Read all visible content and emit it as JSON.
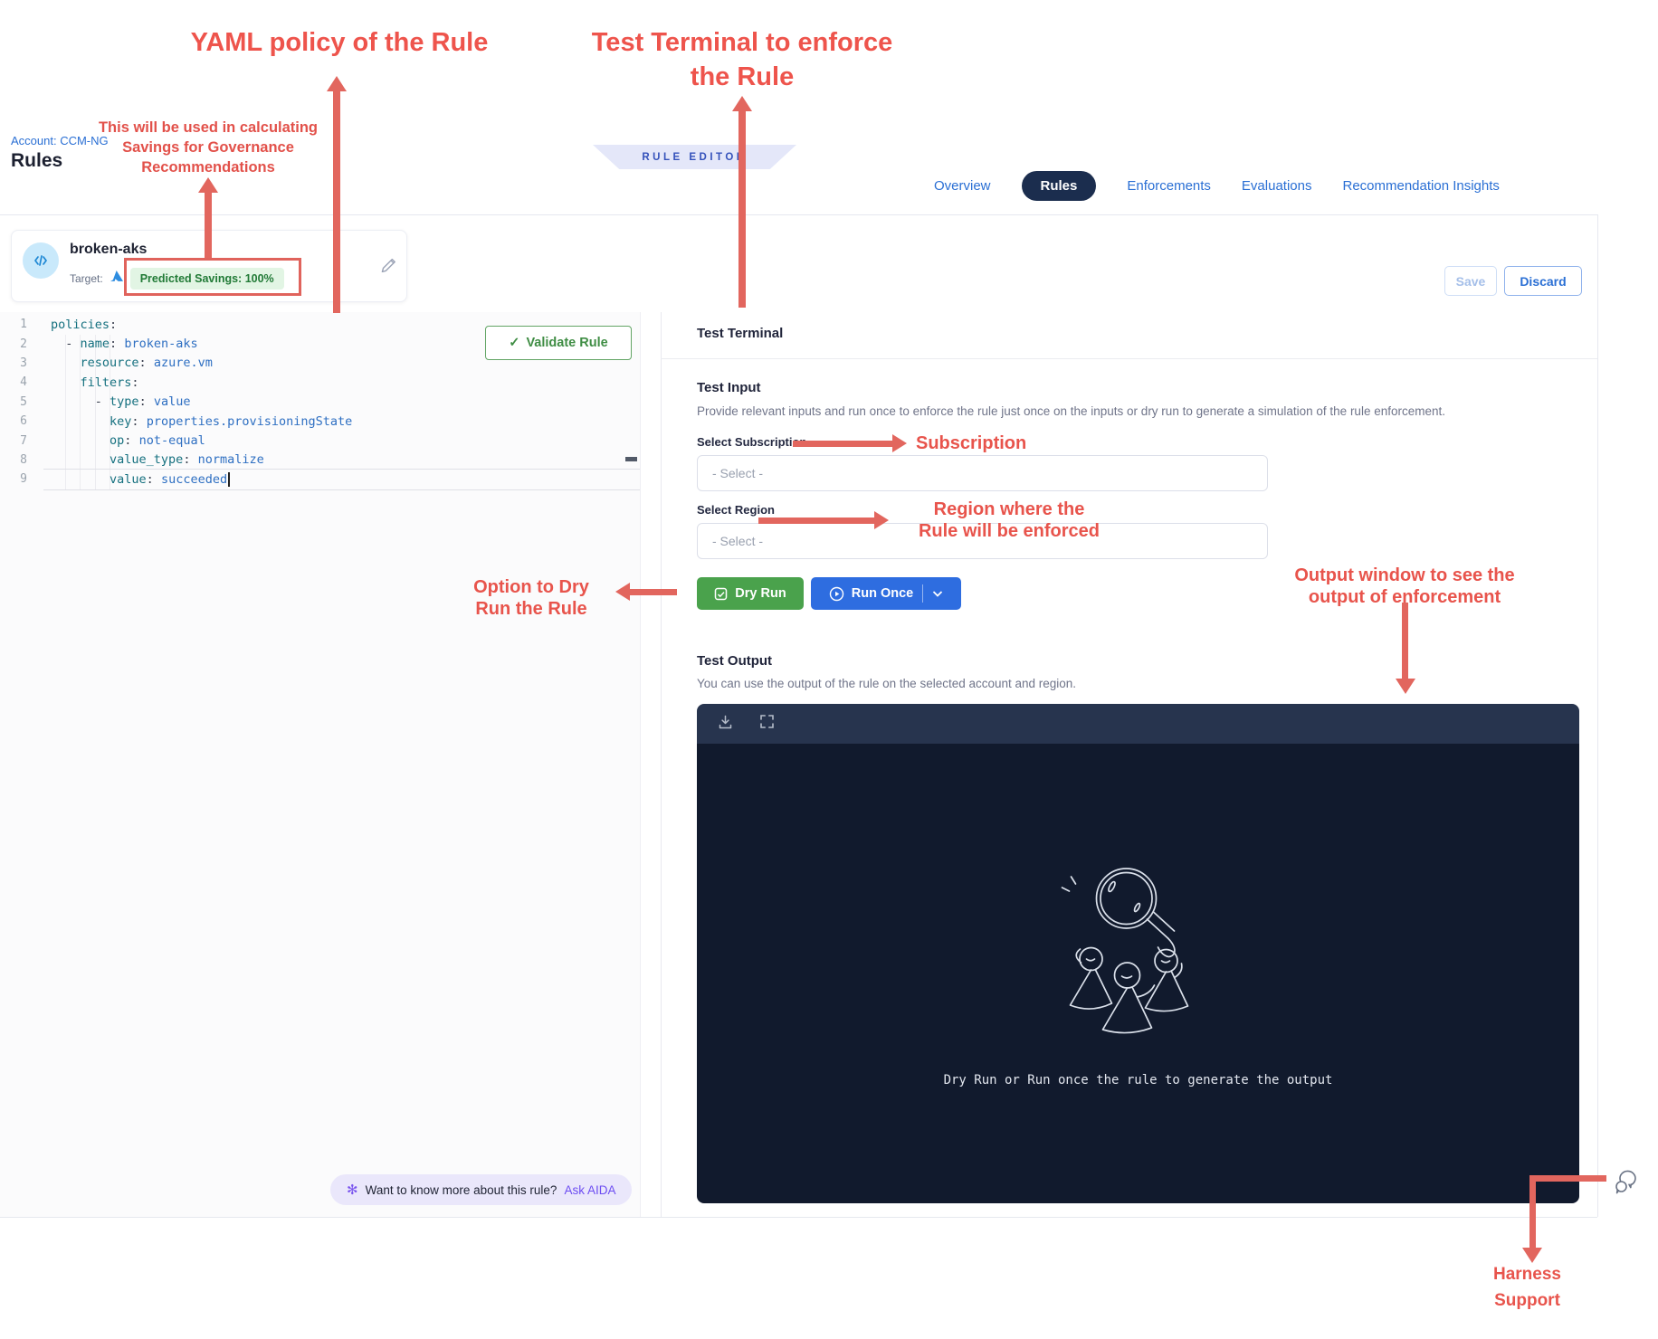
{
  "header": {
    "breadcrumb": "Account: CCM-NG",
    "title": "Rules",
    "ribbon": "RULE EDITOR",
    "tabs": [
      {
        "label": "Overview",
        "active": false
      },
      {
        "label": "Rules",
        "active": true
      },
      {
        "label": "Enforcements",
        "active": false
      },
      {
        "label": "Evaluations",
        "active": false
      },
      {
        "label": "Recommendation Insights",
        "active": false
      }
    ],
    "save_label": "Save",
    "discard_label": "Discard"
  },
  "rule_card": {
    "name": "broken-aks",
    "target_label": "Target:",
    "savings_badge": "Predicted Savings: 100%"
  },
  "editor": {
    "validate_button": "Validate Rule",
    "lines": [
      {
        "n": 1,
        "parts": [
          [
            "k",
            "policies"
          ],
          [
            "p",
            ":"
          ]
        ]
      },
      {
        "n": 2,
        "parts": [
          [
            "s",
            "  "
          ],
          [
            "p",
            "- "
          ],
          [
            "k",
            "name"
          ],
          [
            "p",
            ":"
          ],
          [
            "s",
            " "
          ],
          [
            "v",
            "broken-aks"
          ]
        ]
      },
      {
        "n": 3,
        "parts": [
          [
            "s",
            "    "
          ],
          [
            "k",
            "resource"
          ],
          [
            "p",
            ":"
          ],
          [
            "s",
            " "
          ],
          [
            "v",
            "azure.vm"
          ]
        ]
      },
      {
        "n": 4,
        "parts": [
          [
            "s",
            "    "
          ],
          [
            "k",
            "filters"
          ],
          [
            "p",
            ":"
          ]
        ]
      },
      {
        "n": 5,
        "parts": [
          [
            "s",
            "      "
          ],
          [
            "p",
            "- "
          ],
          [
            "k",
            "type"
          ],
          [
            "p",
            ":"
          ],
          [
            "s",
            " "
          ],
          [
            "v",
            "value"
          ]
        ]
      },
      {
        "n": 6,
        "parts": [
          [
            "s",
            "        "
          ],
          [
            "k",
            "key"
          ],
          [
            "p",
            ":"
          ],
          [
            "s",
            " "
          ],
          [
            "v",
            "properties.provisioningState"
          ]
        ]
      },
      {
        "n": 7,
        "parts": [
          [
            "s",
            "        "
          ],
          [
            "k",
            "op"
          ],
          [
            "p",
            ":"
          ],
          [
            "s",
            " "
          ],
          [
            "v",
            "not-equal"
          ]
        ]
      },
      {
        "n": 8,
        "parts": [
          [
            "s",
            "        "
          ],
          [
            "k",
            "value_type"
          ],
          [
            "p",
            ":"
          ],
          [
            "s",
            " "
          ],
          [
            "v",
            "normalize"
          ]
        ]
      },
      {
        "n": 9,
        "cursor": true,
        "parts": [
          [
            "s",
            "        "
          ],
          [
            "k",
            "value"
          ],
          [
            "p",
            ":"
          ],
          [
            "s",
            " "
          ],
          [
            "v",
            "succeeded"
          ]
        ]
      }
    ]
  },
  "terminal": {
    "title": "Test Terminal",
    "input_title": "Test Input",
    "input_desc": "Provide relevant inputs and run once to enforce the rule just once on the inputs or dry run to generate a simulation of the rule enforcement.",
    "subscription_label": "Select Subscription",
    "subscription_placeholder": "- Select -",
    "region_label": "Select Region",
    "region_placeholder": "- Select -",
    "dry_run_button": "Dry Run",
    "run_once_button": "Run Once",
    "output_title": "Test Output",
    "output_desc": "You can use the output of the rule on the selected account and region.",
    "empty_message": "Dry Run or Run once the rule to generate the output"
  },
  "aida": {
    "question": "Want to know more about this rule?",
    "link": "Ask AIDA",
    "flower_glyph": "✻"
  },
  "annotations": {
    "accent_color": "#e8544c",
    "yaml_policy": "YAML policy of the Rule",
    "test_terminal_l1": "Test Terminal to enforce",
    "test_terminal_l2": "the Rule",
    "savings_l1": "This will be used in calculating",
    "savings_l2": "Savings for Governance",
    "savings_l3": "Recommendations",
    "subscription": "Subscription",
    "region_l1": "Region where the",
    "region_l2": "Rule will be enforced",
    "dry_run_l1": "Option to Dry",
    "dry_run_l2": "Run the Rule",
    "output_l1": "Output window to see the",
    "output_l2": "output of enforcement",
    "support_l1": "Harness",
    "support_l2": "Support",
    "check_glyph": "✓"
  }
}
